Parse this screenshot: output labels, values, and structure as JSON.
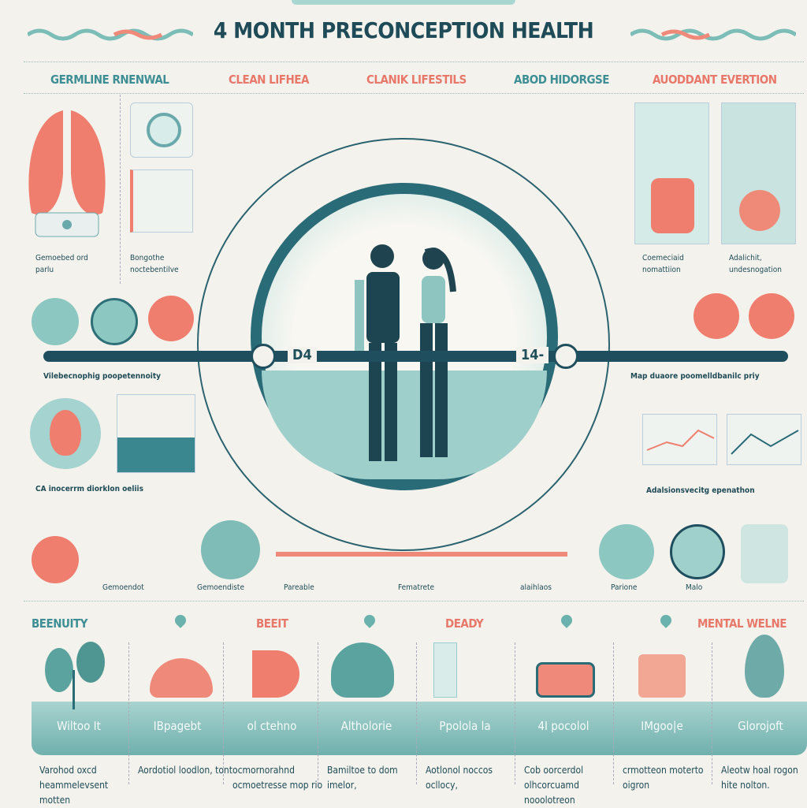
{
  "title": "4 MONTH PRECONCEPTION HEALTH",
  "colors": {
    "background": "#f4f2ec",
    "teal": "#5fa7a5",
    "dark_teal": "#1f5561",
    "coral": "#ef7e6e"
  },
  "headers": [
    "GERMLINE RNENWAL",
    "CLEAN LIFHEA",
    "CLANIK LIFESTILS",
    "ABOD HIDORGSE",
    "AUODDANT EVERTION"
  ],
  "top_captions": [
    "Gemoebed ord parlu",
    "Bongothe noctebentilve",
    "Coemeciaid nomattiion",
    "Adalichit, undesnogation"
  ],
  "timeline": {
    "left_marker": "D4",
    "right_marker": "14-",
    "left_caption": "Vilebecnophig poopetennoity",
    "right_caption": "Map duaore poomelldbanilc priy"
  },
  "mid_captions": [
    "CA inocerrm diorklon oeliis",
    "Adalsionsvecitg epenathon"
  ],
  "row_labels": [
    "Gemoendot",
    "Gemoendiste",
    "Pareable",
    "Fematrete",
    "alaihlaos",
    "Parione",
    "Malo"
  ],
  "bottom_headers": [
    "BEENUITY",
    "BEEIT",
    "DEADY",
    "MENTAL WELNE"
  ],
  "band_labels": [
    "Wiltoo It",
    "IBpagebt",
    "ol ctehno",
    "Altholorie",
    "Ppolola la",
    "4I pocolol",
    "IMgoo|e",
    "Glorojoft"
  ],
  "descriptions": [
    "Varohod oxcd heammelevsent motten",
    "Aordotiol loodlon, tont",
    "ocmornorahnd ocmoetresse mop rio",
    "Bamiltoe to dom imelor,",
    "Aotlonol noccos ocllocy,",
    "Cob oorcerdol olhcorcuamd nooolotreon",
    "crmotteon moterto oigron",
    "Aleotw hoal rogon hite nolton."
  ]
}
